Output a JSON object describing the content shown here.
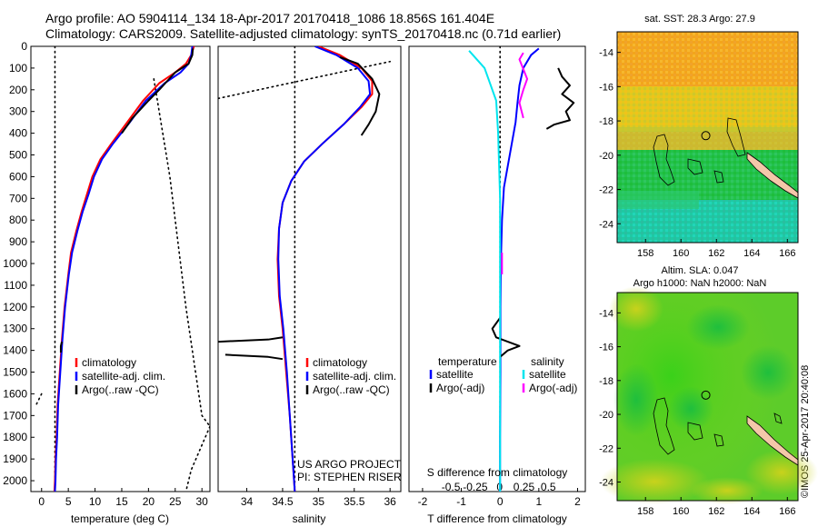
{
  "header": {
    "line1": "Argo profile: AO 5904114_134 18-Apr-2017 20170418_1086 18.856S 161.404E",
    "line2": "Climatology: CARS2009. Satellite-adjusted climatology: synTS_20170418.nc (0.71d earlier)"
  },
  "stamp": "©IMOS 25-Apr-2017 20:40:08",
  "colors": {
    "climatology": "#ff0000",
    "satellite": "#0000ff",
    "argo": "#000000",
    "sal_satellite": "#00e5ee",
    "sal_argo": "#ff00ff"
  },
  "chart_data": [
    {
      "type": "line",
      "xlabel": "temperature (deg C)",
      "ylabel": "",
      "xlim": [
        -2,
        31.5
      ],
      "ylim": [
        2050,
        0
      ],
      "xticks": [
        0,
        5,
        10,
        15,
        20,
        25,
        30
      ],
      "yticks": [
        0,
        100,
        200,
        300,
        400,
        500,
        600,
        700,
        800,
        900,
        1000,
        1100,
        1200,
        1300,
        1400,
        1500,
        1600,
        1700,
        1800,
        1900,
        2000
      ],
      "legend": [
        "climatology",
        "satellite-adj. clim.",
        "Argo(..raw -QC)"
      ],
      "legend_placement": "lower-right",
      "series": [
        {
          "name": "climatology",
          "color": "#ff0000",
          "x": [
            28.5,
            28,
            27,
            25,
            22,
            19,
            16,
            13,
            11,
            9.5,
            8.5,
            7.5,
            6.5,
            5.5,
            5,
            4.3,
            3.8,
            3.4,
            3,
            2.8,
            2.6,
            2.5,
            2.4
          ],
          "y": [
            0,
            40,
            80,
            120,
            170,
            250,
            350,
            450,
            520,
            600,
            680,
            760,
            850,
            950,
            1050,
            1200,
            1350,
            1500,
            1650,
            1800,
            1900,
            2000,
            2050
          ]
        },
        {
          "name": "satellite-adj. clim.",
          "color": "#0000ff",
          "x": [
            28.2,
            28,
            27.5,
            26,
            23,
            19.5,
            16.5,
            13.3,
            11.3,
            9.8,
            8.8,
            7.7,
            6.7,
            5.7,
            5.1,
            4.4,
            3.9,
            3.5,
            3.1,
            2.9,
            2.7,
            2.6,
            2.5
          ],
          "y": [
            0,
            40,
            80,
            120,
            170,
            250,
            350,
            450,
            520,
            600,
            680,
            760,
            850,
            950,
            1050,
            1200,
            1350,
            1500,
            1650,
            1800,
            1900,
            2000,
            2050
          ]
        },
        {
          "name": "Argo(..raw -QC)",
          "color": "#000000",
          "x": [
            28.3,
            28.2,
            27.5,
            25,
            23.5,
            22,
            20,
            17,
            15
          ],
          "y": [
            10,
            40,
            80,
            120,
            160,
            200,
            250,
            330,
            400
          ]
        },
        {
          "name": "",
          "color": "#000000",
          "x": [
            3.8,
            3.6,
            3.6
          ],
          "y": [
            1360,
            1380,
            1410
          ]
        }
      ],
      "dotted": [
        {
          "x": [
            2.5,
            2.5
          ],
          "y": [
            0,
            2050
          ]
        },
        {
          "x": [
            21,
            24,
            27,
            30,
            31.5
          ],
          "y": [
            150,
            600,
            1200,
            1700,
            1750
          ]
        },
        {
          "x": [
            31.5,
            28,
            27
          ],
          "y": [
            1750,
            1950,
            2050
          ]
        },
        {
          "x": [
            0,
            -1
          ],
          "y": [
            1600,
            1650
          ]
        }
      ],
      "footer": ""
    },
    {
      "type": "line",
      "xlabel": "salinity",
      "ylabel": "",
      "xlim": [
        33.6,
        36.15
      ],
      "ylim": [
        2050,
        0
      ],
      "xticks": [
        34,
        34.5,
        35,
        35.5,
        36
      ],
      "yticks": [],
      "legend": [
        "climatology",
        "satellite-adj. clim.",
        "Argo(..raw -QC)"
      ],
      "legend_placement": "center-right",
      "series": [
        {
          "name": "climatology",
          "color": "#ff0000",
          "x": [
            35.0,
            35.3,
            35.6,
            35.75,
            35.75,
            35.6,
            35.35,
            35.05,
            34.8,
            34.62,
            34.5,
            34.45,
            34.43,
            34.45,
            34.5,
            34.55,
            34.6,
            34.63,
            34.65,
            34.67
          ],
          "y": [
            0,
            40,
            100,
            160,
            220,
            280,
            360,
            450,
            530,
            620,
            720,
            840,
            980,
            1150,
            1300,
            1500,
            1700,
            1850,
            1950,
            2050
          ]
        },
        {
          "name": "satellite-adj. clim.",
          "color": "#0000ff",
          "x": [
            34.95,
            35.25,
            35.55,
            35.7,
            35.72,
            35.58,
            35.35,
            35.05,
            34.8,
            34.62,
            34.5,
            34.45,
            34.44,
            34.46,
            34.51,
            34.56,
            34.6,
            34.63,
            34.65,
            34.67
          ],
          "y": [
            0,
            40,
            100,
            160,
            220,
            280,
            360,
            450,
            530,
            620,
            720,
            840,
            980,
            1150,
            1300,
            1500,
            1700,
            1850,
            1950,
            2050
          ]
        },
        {
          "name": "Argo(..raw -QC)",
          "color": "#000000",
          "x": [
            35.3,
            35.55,
            35.75,
            35.85,
            35.8,
            35.7,
            35.6
          ],
          "y": [
            50,
            80,
            150,
            220,
            300,
            360,
            410
          ]
        },
        {
          "name": "",
          "color": "#000000",
          "x": [
            33.6,
            34.3,
            34.5
          ],
          "y": [
            1360,
            1350,
            1340
          ]
        },
        {
          "name": "",
          "color": "#000000",
          "x": [
            33.7,
            34.3,
            34.5
          ],
          "y": [
            1420,
            1430,
            1440
          ]
        }
      ],
      "dotted": [
        {
          "x": [
            34.67,
            34.67
          ],
          "y": [
            0,
            2050
          ]
        },
        {
          "x": [
            33.6,
            36.0
          ],
          "y": [
            240,
            70
          ]
        }
      ],
      "footer": "US ARGO PROJECT\nPI: STEPHEN RISER"
    },
    {
      "type": "line",
      "xlabel": "T difference from climatology",
      "ylabel": "",
      "xlim": [
        -2.35,
        2.2
      ],
      "ylim": [
        2050,
        0
      ],
      "xticks": [
        -2,
        -1,
        0,
        1,
        2
      ],
      "yticks": [],
      "top_axis": {
        "label": "S difference from climatology",
        "ticks": [
          -0.5,
          -0.25,
          0,
          0.25,
          0.5
        ]
      },
      "legend_temperature": [
        "satellite",
        "Argo(-adj)"
      ],
      "legend_salinity": [
        "satellite",
        "Argo(-adj)"
      ],
      "legend_headers": [
        "temperature",
        "salinity"
      ],
      "legend_placement": "lower-center",
      "series": [
        {
          "name": "satellite",
          "color": "#0000ff",
          "x": [
            1.0,
            0.8,
            0.6,
            0.5,
            0.45,
            0.4,
            0.3,
            0.2,
            0.1,
            0.05,
            0.02,
            0.01,
            0.01,
            0.0,
            0.0
          ],
          "y": [
            10,
            40,
            100,
            180,
            260,
            350,
            450,
            550,
            650,
            800,
            1000,
            1200,
            1500,
            1800,
            2050
          ]
        },
        {
          "name": "Argo(-adj)",
          "color": "#000000",
          "x": [
            1.5,
            1.6,
            1.8,
            1.6,
            1.9,
            1.7,
            1.8,
            1.4,
            1.2
          ],
          "y": [
            100,
            140,
            180,
            220,
            260,
            300,
            340,
            360,
            380
          ]
        },
        {
          "name": "",
          "color": "#000000",
          "x": [
            0.0,
            -0.2,
            -0.1,
            0.5,
            0.2,
            0.0
          ],
          "y": [
            1250,
            1300,
            1340,
            1380,
            1400,
            1430
          ]
        },
        {
          "name": "",
          "color": "#00e5ee",
          "x": [
            -0.8,
            -0.4,
            -0.1,
            -0.05,
            0.0,
            0.0,
            0.0,
            0.0
          ],
          "y": [
            20,
            100,
            250,
            400,
            700,
            1000,
            1500,
            2050
          ]
        },
        {
          "name": "",
          "color": "#ff00ff",
          "x": [
            0.6,
            0.5,
            0.7,
            0.6,
            0.5,
            0.6
          ],
          "y": [
            30,
            60,
            150,
            200,
            260,
            330
          ]
        },
        {
          "name": "",
          "color": "#ff00ff",
          "x": [
            0.05,
            0.05
          ],
          "y": [
            950,
            1050
          ]
        }
      ],
      "dotted": [
        {
          "x": [
            0,
            0
          ],
          "y": [
            0,
            2050
          ]
        }
      ],
      "footer": ""
    },
    {
      "type": "heatmap",
      "title": "sat. SST: 28.3 Argo: 27.9",
      "xticks": [
        158,
        160,
        162,
        164,
        166
      ],
      "yticks": [
        -14,
        -16,
        -18,
        -20,
        -22,
        -24
      ],
      "xlim": [
        156.4,
        166.6
      ],
      "ylim": [
        -25.1,
        -12.8
      ],
      "marker": {
        "x": 161.4,
        "y": -18.86
      }
    },
    {
      "type": "heatmap",
      "title_line1": "Altim. SLA: 0.047",
      "title_line2": "Argo h1000: NaN h2000: NaN",
      "xticks": [
        158,
        160,
        162,
        164,
        166
      ],
      "yticks": [
        -14,
        -16,
        -18,
        -20,
        -22,
        -24
      ],
      "xlim": [
        156.4,
        166.6
      ],
      "ylim": [
        -25.1,
        -12.8
      ],
      "marker": {
        "x": 161.4,
        "y": -18.86
      }
    }
  ]
}
